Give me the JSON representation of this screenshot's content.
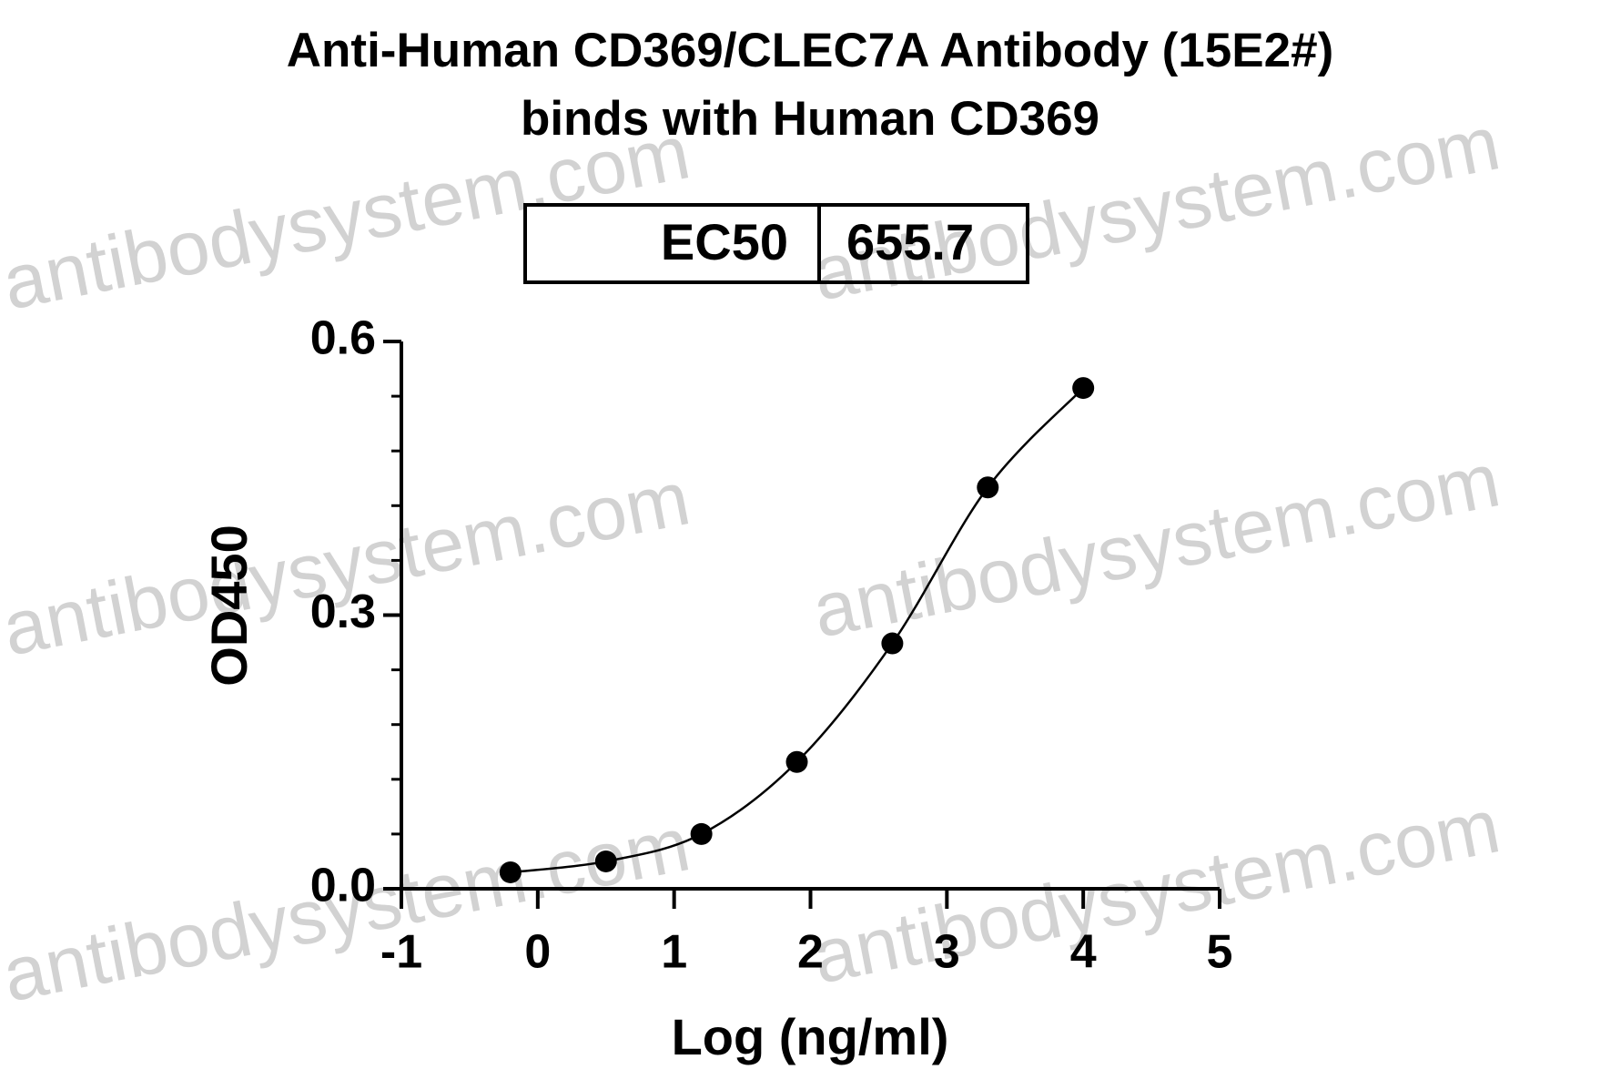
{
  "chart_data": {
    "type": "line",
    "title": "Anti-Human CD369/CLEC7A Antibody (15E2#)",
    "subtitle": "binds with Human CD369",
    "table": {
      "label": "EC50",
      "value": 655.7
    },
    "watermark": "antibodysystem.com",
    "x_label": "Log (ng/ml)",
    "y_label": "OD450",
    "x": [
      -0.2,
      0.5,
      1.2,
      1.9,
      2.6,
      3.3,
      4.0
    ],
    "series": [
      {
        "color": "#000000",
        "values": [
          0.018,
          0.03,
          0.06,
          0.139,
          0.269,
          0.44,
          0.549
        ]
      }
    ],
    "smooth": true,
    "markers": true,
    "xlim": [
      -1,
      5
    ],
    "xticks": [
      -1,
      0,
      1,
      2,
      3,
      4,
      5
    ],
    "ylim": [
      0,
      0.6
    ],
    "yticks": [
      {
        "value": 0,
        "label": "0.0"
      },
      0.3,
      0.6
    ],
    "yminorticks": [
      0.06,
      0.12,
      0.18,
      0.24,
      0.36,
      0.42,
      0.48,
      0.54
    ]
  }
}
